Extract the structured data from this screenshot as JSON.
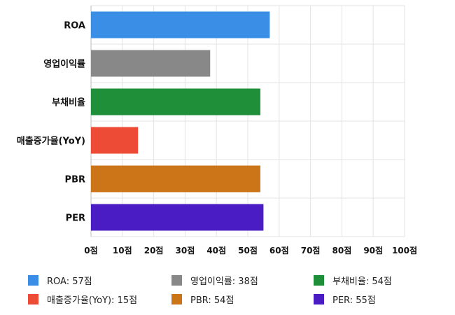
{
  "chart_data": {
    "type": "bar",
    "orientation": "horizontal",
    "categories": [
      "ROA",
      "영업이익률",
      "부채비율",
      "매출증가율(YoY)",
      "PBR",
      "PER"
    ],
    "values": [
      57,
      38,
      54,
      15,
      54,
      55
    ],
    "colors": [
      "#3a8ee6",
      "#888888",
      "#1f8f3a",
      "#ee4b37",
      "#cc7418",
      "#4a1cc4"
    ],
    "xlim": [
      0,
      100
    ],
    "x_ticks": [
      0,
      10,
      20,
      30,
      40,
      50,
      60,
      70,
      80,
      90,
      100
    ],
    "tick_suffix": "점",
    "grid": true,
    "legend_position": "bottom",
    "legend": [
      "ROA: 57점",
      "영업이익률: 38점",
      "부채비율: 54점",
      "매출증가율(YoY): 15점",
      "PBR: 54점",
      "PER: 55점"
    ]
  }
}
